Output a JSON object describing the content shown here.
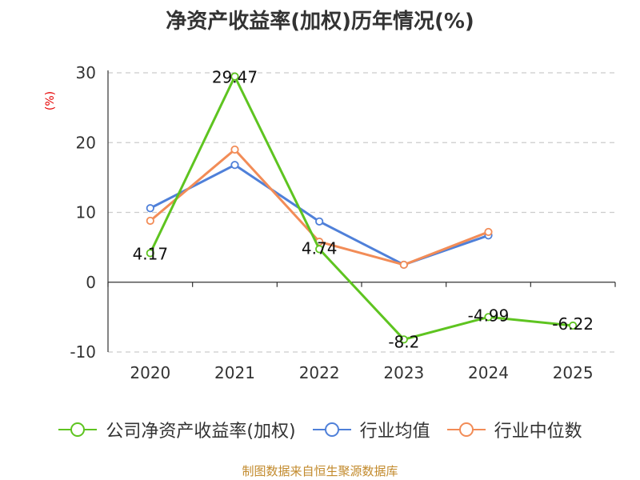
{
  "chart_data": {
    "type": "line",
    "title": "净资产收益率(加权)历年情况(%)",
    "ylabel": "(%)",
    "xlabel": "",
    "categories": [
      "2020",
      "2021",
      "2022",
      "2023",
      "2024",
      "2025"
    ],
    "ylim": [
      -10,
      30
    ],
    "yticks": [
      -10,
      0,
      10,
      20,
      30
    ],
    "grid": true,
    "legend_position": "bottom",
    "series": [
      {
        "name": "公司净资产收益率(加权)",
        "color": "#5ec420",
        "values": [
          4.17,
          29.47,
          4.74,
          -8.2,
          -4.99,
          -6.22
        ],
        "labels": [
          "4.17",
          "29.47",
          "4.74",
          "-8.2",
          "-4.99",
          "-6.22"
        ],
        "show_labels": true
      },
      {
        "name": "行业均值",
        "color": "#4f80d9",
        "values": [
          10.6,
          16.8,
          8.7,
          2.5,
          6.7,
          null
        ],
        "show_labels": false
      },
      {
        "name": "行业中位数",
        "color": "#f28c57",
        "values": [
          8.8,
          19.0,
          5.8,
          2.5,
          7.2,
          null
        ],
        "show_labels": false
      }
    ],
    "source": "制图数据来自恒生聚源数据库"
  }
}
